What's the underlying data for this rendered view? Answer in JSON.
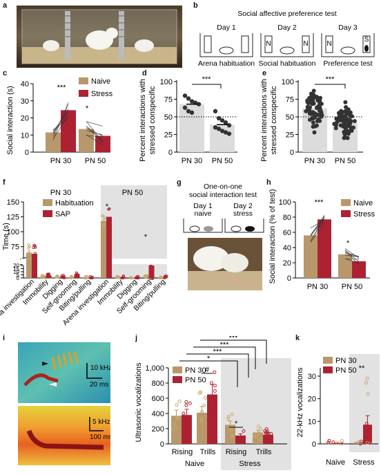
{
  "panel_labels": {
    "a": "a",
    "b": "b",
    "c": "c",
    "d": "d",
    "e": "e",
    "f": "f",
    "g": "g",
    "h": "h",
    "i": "i",
    "j": "j",
    "k": "k"
  },
  "colors": {
    "naive": "#b8986a",
    "stress": "#ad2233",
    "grey_panel": "#e2e2e2",
    "points_dark": "#333333"
  },
  "panel_b": {
    "title": "Social affective preference test",
    "days": [
      "Day 1",
      "Day 2",
      "Day 3"
    ],
    "captions": [
      "Arena habituation",
      "Social habituation",
      "Preference test"
    ],
    "cage_letters": {
      "day2_left": "N",
      "day2_right": "N",
      "day3_left": "N",
      "day3_right": "S"
    }
  },
  "panel_g": {
    "title_line1": "One-on-one",
    "title_line2": "social interaction test",
    "day1_line1": "Day 1",
    "day1_line2": "naive",
    "day2_line1": "Day 2",
    "day2_line2": "stress"
  },
  "panel_i": {
    "scale_top_y": "10 kHz",
    "scale_top_x": "20 ms",
    "scale_bottom_y": "5 kHz",
    "scale_bottom_x": "100 ms"
  },
  "chart_data": [
    {
      "id": "c",
      "type": "bar",
      "ylabel": "Social interaction (s)",
      "ylim": [
        0,
        40
      ],
      "yticks": [
        0,
        10,
        20,
        30,
        40
      ],
      "categories": [
        "PN 30",
        "PN 50"
      ],
      "series": [
        {
          "name": "Naive",
          "values": [
            11.5,
            13.5
          ]
        },
        {
          "name": "Stress",
          "values": [
            24.5,
            9.5
          ]
        }
      ],
      "significance": [
        "***",
        "*"
      ]
    },
    {
      "id": "d",
      "type": "bar",
      "ylabel_line1": "Percent interactions with",
      "ylabel_line2": "stressed conspecific",
      "ylim": [
        0,
        100
      ],
      "yticks": [
        0,
        25,
        50,
        75,
        100
      ],
      "chance": 50,
      "categories": [
        "PN 30",
        "PN 50"
      ],
      "values": [
        68,
        39
      ],
      "points": [
        [
          80,
          76,
          72,
          70,
          68,
          63,
          58,
          56
        ],
        [
          58,
          48,
          45,
          42,
          38,
          35,
          33,
          30,
          28,
          26
        ]
      ],
      "significance": [
        "***"
      ]
    },
    {
      "id": "e",
      "type": "bar",
      "ylabel_line1": "Percent interactions with",
      "ylabel_line2": "stressed conspecific",
      "ylim": [
        0,
        100
      ],
      "yticks": [
        0,
        25,
        50,
        75,
        100
      ],
      "chance": 50,
      "categories": [
        "PN 30",
        "PN 50"
      ],
      "values": [
        62,
        42
      ],
      "significance": [
        "***"
      ]
    },
    {
      "id": "f",
      "type": "bar",
      "ylabel": "Time (s)",
      "yticks_upper": [
        75,
        100,
        125,
        150
      ],
      "yticks_lower": [
        0,
        5,
        10,
        15,
        20
      ],
      "group_labels": [
        "PN 30",
        "PN 50"
      ],
      "categories": [
        "Arena investigation",
        "Immobility",
        "Digging",
        "Self-grooming",
        "Biting/pulling"
      ],
      "series": [
        {
          "name": "Habituation",
          "values_pn30": [
            65,
            3,
            1.5,
            1.5,
            0.5
          ],
          "values_pn50": [
            118,
            1.5,
            0.5,
            3,
            0.2
          ]
        },
        {
          "name": "SAP",
          "values_pn30": [
            63,
            4,
            2,
            6,
            0.5
          ],
          "values_pn50": [
            125,
            1,
            1,
            20,
            0.5
          ]
        }
      ],
      "significance": [
        "*",
        "*"
      ]
    },
    {
      "id": "h",
      "type": "bar",
      "ylabel": "Social interaction (% of test)",
      "ylim": [
        0,
        100
      ],
      "yticks": [
        0,
        20,
        40,
        60,
        80,
        100
      ],
      "categories": [
        "PN 30",
        "PN 50"
      ],
      "series": [
        {
          "name": "Naive",
          "values": [
            56,
            31
          ]
        },
        {
          "name": "Stress",
          "values": [
            77,
            22
          ]
        }
      ],
      "significance": [
        "***",
        "*"
      ]
    },
    {
      "id": "j",
      "type": "bar",
      "ylabel": "Ultrasonic vocalizations",
      "ylim": [
        0,
        1000
      ],
      "yticks": [
        "0",
        "200",
        "400",
        "600",
        "800",
        "1,000"
      ],
      "subcategories": [
        "Rising",
        "Trills",
        "Rising",
        "Trills"
      ],
      "groups": [
        "Naive",
        "Stress"
      ],
      "series": [
        {
          "name": "PN 30",
          "values": [
            370,
            410,
            250,
            150
          ]
        },
        {
          "name": "PN 50",
          "values": [
            380,
            650,
            110,
            120
          ]
        }
      ],
      "significance": [
        "***",
        "***",
        "***",
        "*",
        "#",
        "*"
      ]
    },
    {
      "id": "k",
      "type": "bar",
      "ylabel": "22-kHz vocalizations",
      "ylim": [
        0,
        30
      ],
      "yticks": [
        0,
        10,
        20,
        30
      ],
      "categories": [
        "Naive",
        "Stress"
      ],
      "series": [
        {
          "name": "PN 30",
          "values": [
            0.5,
            0.8
          ]
        },
        {
          "name": "PN 50",
          "values": [
            0.5,
            8.5
          ]
        }
      ],
      "significance": [
        "**"
      ]
    }
  ]
}
